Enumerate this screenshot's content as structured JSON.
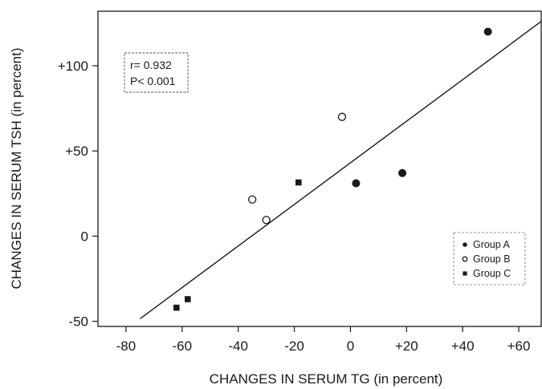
{
  "chart_data": {
    "type": "scatter",
    "xlabel": "CHANGES IN SERUM TG (in percent)",
    "ylabel": "CHANGES IN SERUM TSH (in percent)",
    "xlim": [
      -90,
      68
    ],
    "ylim": [
      -53,
      132
    ],
    "x_ticks": [
      {
        "value": -80,
        "label": "-80"
      },
      {
        "value": -60,
        "label": "-60"
      },
      {
        "value": -40,
        "label": "-40"
      },
      {
        "value": -20,
        "label": "-20"
      },
      {
        "value": 0,
        "label": "0"
      },
      {
        "value": 20,
        "label": "+20"
      },
      {
        "value": 40,
        "label": "+40"
      },
      {
        "value": 60,
        "label": "+60"
      }
    ],
    "y_ticks": [
      {
        "value": -50,
        "label": "-50"
      },
      {
        "value": 0,
        "label": "0"
      },
      {
        "value": 50,
        "label": "+50"
      },
      {
        "value": 100,
        "label": "+100"
      }
    ],
    "stats": {
      "r_text": "r= 0.932",
      "p_text": "P< 0.001"
    },
    "regression_line": {
      "x": [
        -75,
        68
      ],
      "y": [
        -48.5,
        126
      ]
    },
    "series": [
      {
        "name": "Group A",
        "marker": "filled-circle",
        "points": [
          {
            "x": 2,
            "y": 31
          },
          {
            "x": 18.5,
            "y": 37
          },
          {
            "x": 49,
            "y": 120
          }
        ]
      },
      {
        "name": "Group B",
        "marker": "open-circle",
        "points": [
          {
            "x": -35,
            "y": 21.5
          },
          {
            "x": -30,
            "y": 9.5
          },
          {
            "x": -3,
            "y": 70
          }
        ]
      },
      {
        "name": "Group C",
        "marker": "filled-square",
        "points": [
          {
            "x": -62,
            "y": -42
          },
          {
            "x": -58,
            "y": -37
          },
          {
            "x": -18.5,
            "y": 31.5
          }
        ]
      }
    ],
    "legend_position": "bottom-right",
    "grid": false,
    "colors": {
      "ink": "#1a1a1a",
      "background": "#ffffff"
    }
  }
}
